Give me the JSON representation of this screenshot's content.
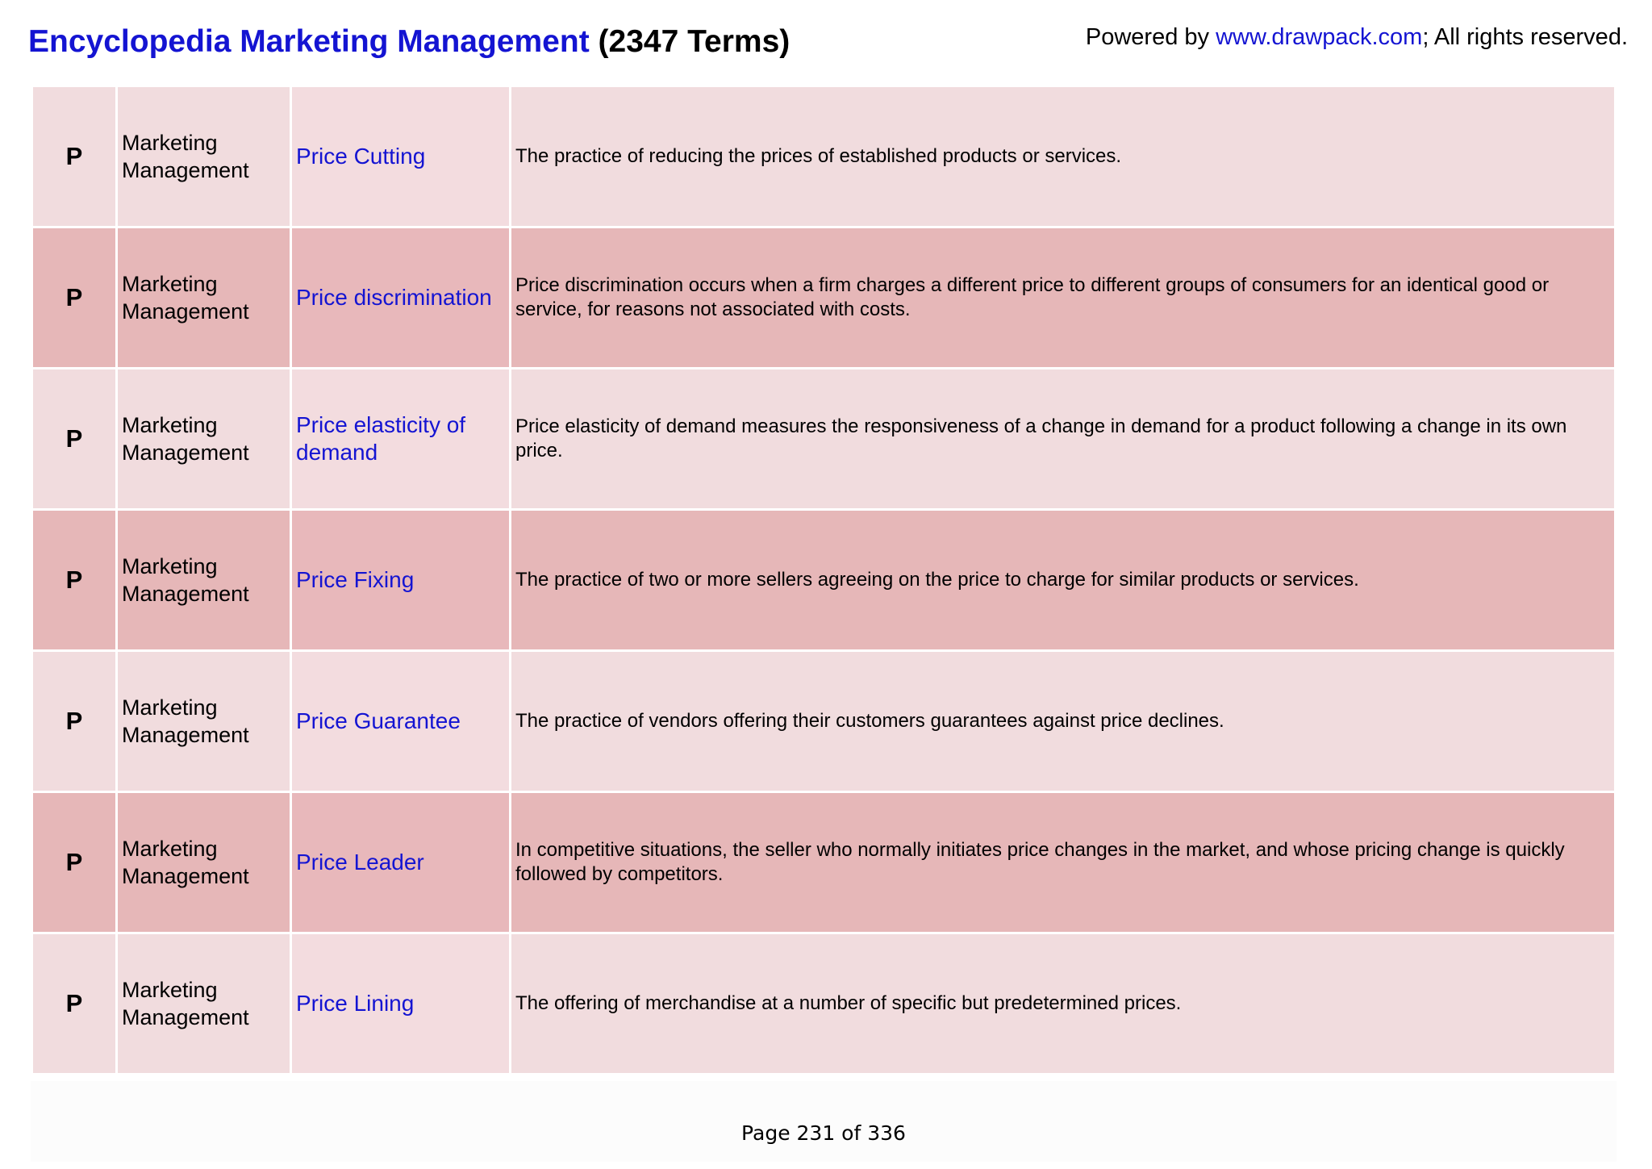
{
  "header": {
    "title_main": "Encyclopedia Marketing Management",
    "title_count": "(2347 Terms)",
    "powered_prefix": "Powered by ",
    "powered_link": "www.drawpack.com",
    "powered_suffix": "; All rights reserved."
  },
  "rows": [
    {
      "letter": "P",
      "category": "Marketing Management",
      "term": "Price Cutting",
      "definition": "The practice of reducing the prices of established products or services."
    },
    {
      "letter": "P",
      "category": "Marketing Management",
      "term": "Price discrimination",
      "definition": "Price discrimination occurs when a firm charges a different price to different groups of consumers for an identical good or service, for reasons not associated with costs."
    },
    {
      "letter": "P",
      "category": "Marketing Management",
      "term": "Price elasticity of demand",
      "definition": "Price elasticity of demand measures the responsiveness of a change in demand for a product following a change in its own price."
    },
    {
      "letter": "P",
      "category": "Marketing Management",
      "term": "Price Fixing",
      "definition": "The practice of two or more sellers agreeing on the price to charge for similar products or services."
    },
    {
      "letter": "P",
      "category": "Marketing Management",
      "term": "Price Guarantee",
      "definition": "The practice of vendors offering their customers guarantees against price declines."
    },
    {
      "letter": "P",
      "category": "Marketing Management",
      "term": "Price Leader",
      "definition": "In competitive situations, the seller who normally initiates price changes in the market, and whose pricing change is quickly followed by competitors."
    },
    {
      "letter": "P",
      "category": "Marketing Management",
      "term": "Price Lining",
      "definition": "The offering of merchandise at a number of specific but predetermined prices."
    }
  ],
  "footer": {
    "page_label": "Page 231 of 336"
  },
  "colors": {
    "link_blue": "#1414d2",
    "row_light": "#f1dcde",
    "row_dark": "#e6b7b8"
  }
}
